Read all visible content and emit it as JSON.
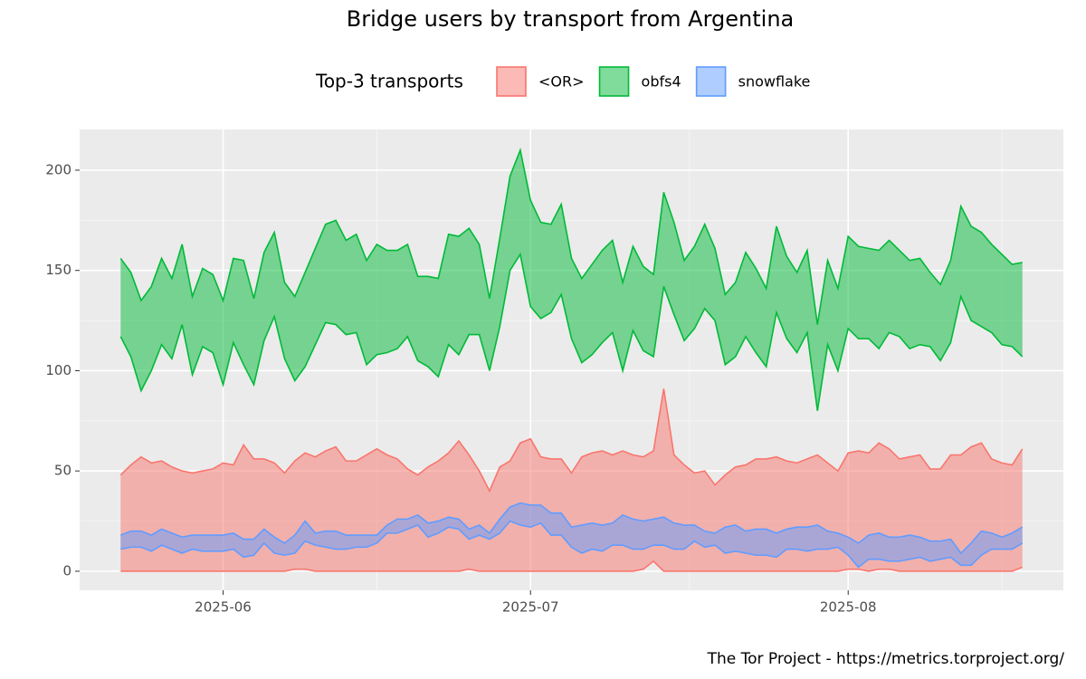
{
  "chart_data": {
    "type": "ribbon",
    "title": "Bridge users by transport from Argentina",
    "legend_title": "Top-3 transports",
    "caption": "The Tor Project - https://metrics.torproject.org/",
    "start": "2025-05-22",
    "xlim": [
      "2025-05-18",
      "2025-08-22"
    ],
    "xticks": [
      {
        "value": "2025-06-01",
        "label": "2025-06"
      },
      {
        "value": "2025-07-01",
        "label": "2025-07"
      },
      {
        "value": "2025-08-01",
        "label": "2025-08"
      }
    ],
    "ylim": [
      -9.5,
      220.3
    ],
    "yticks": [
      0,
      50,
      100,
      150,
      200
    ],
    "grid": true,
    "series": [
      {
        "name": "<OR>",
        "color": "#F8766D",
        "upper": [
          48,
          53,
          57,
          54,
          55,
          52,
          50,
          49,
          50,
          51,
          54,
          53,
          63,
          56,
          56,
          54,
          49,
          55,
          59,
          57,
          60,
          62,
          55,
          55,
          58,
          61,
          58,
          56,
          51,
          48,
          52,
          55,
          59,
          65,
          58,
          50,
          40,
          52,
          55,
          64,
          66,
          57,
          56,
          56,
          49,
          57,
          59,
          60,
          58,
          60,
          58,
          57,
          60,
          91,
          58,
          53,
          49,
          50,
          43,
          48,
          52,
          53,
          56,
          56,
          57,
          55,
          54,
          56,
          58,
          54,
          50,
          59,
          60,
          59,
          64,
          61,
          56,
          57,
          58,
          51,
          51,
          58,
          58,
          62,
          64,
          56,
          54,
          53,
          61
        ],
        "lower": [
          0,
          0,
          0,
          0,
          0,
          0,
          0,
          0,
          0,
          0,
          0,
          0,
          0,
          0,
          0,
          0,
          0,
          1,
          1,
          0,
          0,
          0,
          0,
          0,
          0,
          0,
          0,
          0,
          0,
          0,
          0,
          0,
          0,
          0,
          1,
          0,
          0,
          0,
          0,
          0,
          0,
          0,
          0,
          0,
          0,
          0,
          0,
          0,
          0,
          0,
          0,
          1,
          5,
          0,
          0,
          0,
          0,
          0,
          0,
          0,
          0,
          0,
          0,
          0,
          0,
          0,
          0,
          0,
          0,
          0,
          0,
          1,
          1,
          0,
          1,
          1,
          0,
          0,
          0,
          0,
          0,
          0,
          0,
          0,
          0,
          0,
          0,
          0,
          2
        ]
      },
      {
        "name": "obfs4",
        "color": "#00BA38",
        "upper": [
          156,
          149,
          135,
          142,
          156,
          146,
          163,
          137,
          151,
          148,
          135,
          156,
          155,
          136,
          159,
          169,
          144,
          137,
          149,
          161,
          173,
          175,
          165,
          168,
          155,
          163,
          160,
          160,
          163,
          147,
          147,
          146,
          168,
          167,
          171,
          163,
          136,
          166,
          197,
          210,
          185,
          174,
          173,
          183,
          156,
          146,
          153,
          160,
          165,
          144,
          162,
          152,
          148,
          189,
          174,
          155,
          162,
          173,
          161,
          138,
          144,
          159,
          151,
          141,
          172,
          157,
          149,
          160,
          123,
          155,
          141,
          167,
          162,
          161,
          160,
          165,
          160,
          155,
          156,
          149,
          143,
          155,
          182,
          172,
          169,
          163,
          158,
          153,
          154
        ],
        "lower": [
          117,
          107,
          90,
          100,
          113,
          106,
          123,
          98,
          112,
          109,
          93,
          114,
          103,
          93,
          115,
          127,
          106,
          95,
          102,
          113,
          124,
          123,
          118,
          119,
          103,
          108,
          109,
          111,
          117,
          105,
          102,
          97,
          113,
          108,
          118,
          118,
          100,
          122,
          150,
          158,
          132,
          126,
          129,
          138,
          116,
          104,
          108,
          114,
          119,
          100,
          120,
          110,
          107,
          142,
          128,
          115,
          121,
          131,
          125,
          103,
          107,
          117,
          109,
          102,
          129,
          116,
          109,
          119,
          80,
          113,
          100,
          121,
          116,
          116,
          111,
          119,
          117,
          111,
          113,
          112,
          105,
          114,
          137,
          125,
          122,
          119,
          113,
          112,
          107
        ]
      },
      {
        "name": "snowflake",
        "color": "#619CFF",
        "upper": [
          18,
          20,
          20,
          18,
          21,
          19,
          17,
          18,
          18,
          18,
          18,
          19,
          16,
          16,
          21,
          17,
          14,
          18,
          25,
          19,
          20,
          20,
          18,
          18,
          18,
          18,
          23,
          26,
          26,
          28,
          24,
          25,
          27,
          26,
          21,
          23,
          19,
          26,
          32,
          34,
          33,
          33,
          29,
          29,
          22,
          23,
          24,
          23,
          24,
          28,
          26,
          25,
          26,
          27,
          24,
          23,
          23,
          20,
          19,
          22,
          23,
          20,
          21,
          21,
          19,
          21,
          22,
          22,
          23,
          20,
          19,
          17,
          14,
          18,
          19,
          17,
          17,
          18,
          17,
          15,
          15,
          16,
          9,
          14,
          20,
          19,
          17,
          19,
          22
        ],
        "lower": [
          11,
          12,
          12,
          10,
          13,
          11,
          9,
          11,
          10,
          10,
          10,
          11,
          7,
          8,
          14,
          9,
          8,
          9,
          15,
          13,
          12,
          11,
          11,
          12,
          12,
          14,
          19,
          19,
          21,
          23,
          17,
          19,
          22,
          21,
          16,
          18,
          16,
          19,
          25,
          23,
          22,
          24,
          18,
          18,
          12,
          9,
          11,
          10,
          13,
          13,
          11,
          11,
          13,
          13,
          11,
          11,
          15,
          12,
          13,
          9,
          10,
          9,
          8,
          8,
          7,
          11,
          11,
          10,
          11,
          11,
          12,
          8,
          2,
          6,
          6,
          5,
          5,
          6,
          7,
          5,
          6,
          7,
          3,
          3,
          8,
          11,
          11,
          11,
          14
        ]
      }
    ]
  }
}
